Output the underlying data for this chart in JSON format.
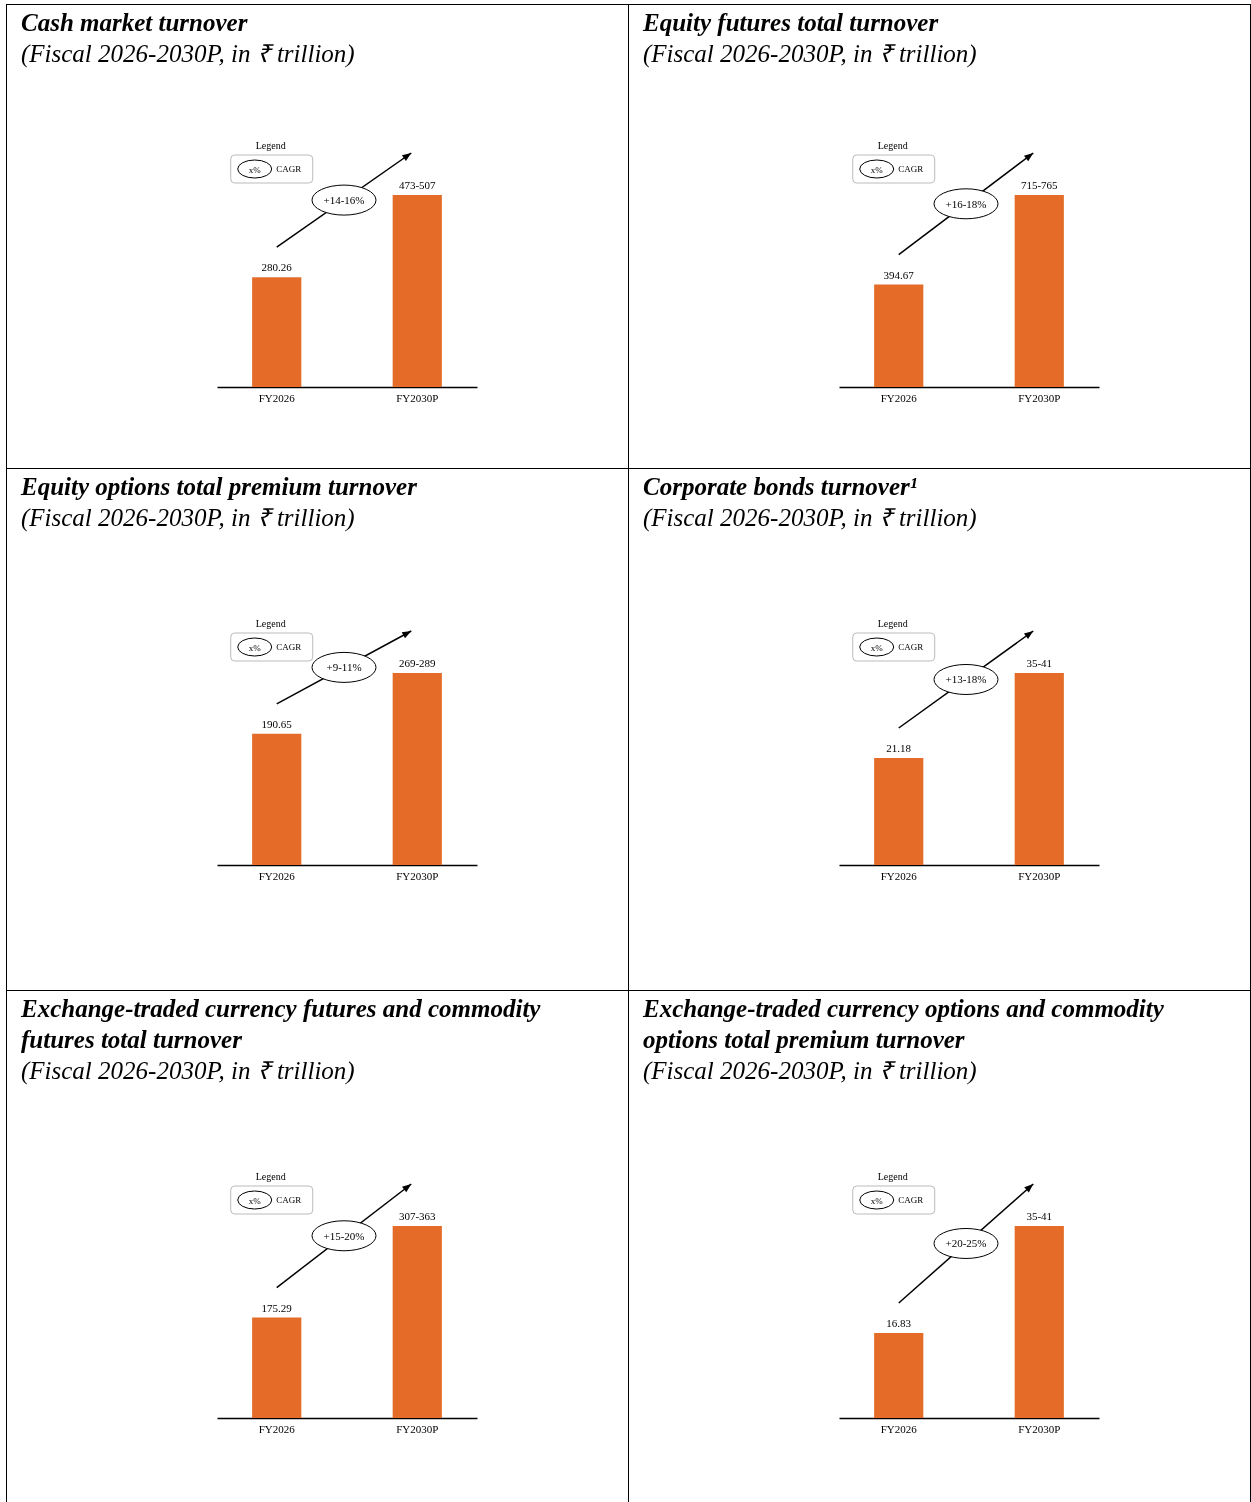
{
  "chart_data": [
    {
      "type": "bar",
      "title": "Cash market turnover",
      "subtitle": "(Fiscal 2026-2030P, in ₹ trillion)",
      "categories": [
        "FY2026",
        "FY2030P"
      ],
      "values": [
        280.26,
        490
      ],
      "value_labels": [
        "280.26",
        "473-507"
      ],
      "color": "#e46c28",
      "annotations": [
        "Legend",
        "x%",
        "CAGR",
        "+14-16%"
      ]
    },
    {
      "type": "bar",
      "title": "Equity futures total turnover",
      "subtitle": "(Fiscal 2026-2030P, in ₹ trillion)",
      "categories": [
        "FY2026",
        "FY2030P"
      ],
      "values": [
        394.67,
        740
      ],
      "value_labels": [
        "394.67",
        "715-765"
      ],
      "color": "#e46c28",
      "annotations": [
        "Legend",
        "x%",
        "CAGR",
        "+16-18%"
      ]
    },
    {
      "type": "bar",
      "title": "Equity options total premium turnover",
      "subtitle": "(Fiscal 2026-2030P, in ₹ trillion)",
      "categories": [
        "FY2026",
        "FY2030P"
      ],
      "values": [
        190.65,
        279
      ],
      "value_labels": [
        "190.65",
        "269-289"
      ],
      "color": "#e46c28",
      "annotations": [
        "Legend",
        "x%",
        "CAGR",
        "+9-11%"
      ]
    },
    {
      "type": "bar",
      "title": "Corporate bonds turnover¹",
      "subtitle": "(Fiscal 2026-2030P, in ₹ trillion)",
      "categories": [
        "FY2026",
        "FY2030P"
      ],
      "values": [
        21.18,
        38
      ],
      "value_labels": [
        "21.18",
        "35-41"
      ],
      "color": "#e46c28",
      "annotations": [
        "Legend",
        "x%",
        "CAGR",
        "+13-18%"
      ]
    },
    {
      "type": "bar",
      "title": "Exchange-traded currency futures and commodity futures total turnover",
      "subtitle": "(Fiscal 2026-2030P, in ₹ trillion)",
      "categories": [
        "FY2026",
        "FY2030P"
      ],
      "values": [
        175.29,
        335
      ],
      "value_labels": [
        "175.29",
        "307-363"
      ],
      "color": "#e46c28",
      "annotations": [
        "Legend",
        "x%",
        "CAGR",
        "+15-20%"
      ]
    },
    {
      "type": "bar",
      "title": "Exchange-traded currency options and commodity options total premium turnover",
      "subtitle": "(Fiscal 2026-2030P, in ₹ trillion)",
      "categories": [
        "FY2026",
        "FY2030P"
      ],
      "values": [
        16.83,
        38
      ],
      "value_labels": [
        "16.83",
        "35-41"
      ],
      "color": "#e46c28",
      "annotations": [
        "Legend",
        "x%",
        "CAGR",
        "+20-25%"
      ]
    }
  ]
}
